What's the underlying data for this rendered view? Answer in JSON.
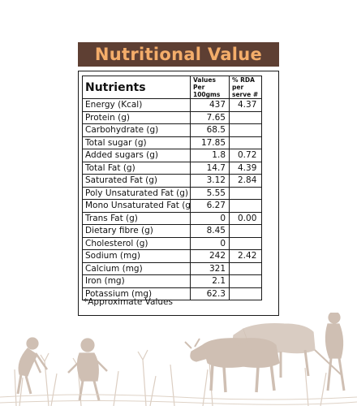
{
  "title": "Nutritional Value",
  "headers": {
    "nutrients": "Nutrients",
    "values": "Values Per 100gms",
    "rda": "% RDA per serve #"
  },
  "rows": [
    {
      "name": "Energy (Kcal)",
      "value": "437",
      "rda": "4.37"
    },
    {
      "name": "Protein (g)",
      "value": "7.65",
      "rda": ""
    },
    {
      "name": "Carbohydrate (g)",
      "value": "68.5",
      "rda": ""
    },
    {
      "name": "Total sugar (g)",
      "value": "17.85",
      "rda": ""
    },
    {
      "name": "Added sugars (g)",
      "value": "1.8",
      "rda": "0.72"
    },
    {
      "name": "Total Fat (g)",
      "value": "14.7",
      "rda": "4.39"
    },
    {
      "name": "Saturated Fat (g)",
      "value": "3.12",
      "rda": "2.84"
    },
    {
      "name": "Poly Unsaturated Fat (g)",
      "value": "5.55",
      "rda": ""
    },
    {
      "name": "Mono Unsaturated Fat (g)",
      "value": "6.27",
      "rda": ""
    },
    {
      "name": "Trans Fat  (g)",
      "value": "0",
      "rda": "0.00"
    },
    {
      "name": "Dietary fibre (g)",
      "value": "8.45",
      "rda": ""
    },
    {
      "name": "Cholesterol (g)",
      "value": "0",
      "rda": ""
    },
    {
      "name": "Sodium (mg)",
      "value": "242",
      "rda": "2.42"
    },
    {
      "name": "Calcium (mg)",
      "value": "321",
      "rda": ""
    },
    {
      "name": "Iron (mg)",
      "value": "2.1",
      "rda": ""
    },
    {
      "name": "Potassium (mg)",
      "value": "62.3",
      "rda": ""
    }
  ],
  "footnote": "*Approximate Values",
  "colors": {
    "banner_bg": "#5e3f33",
    "banner_text": "#f4ad6a",
    "illustration": "#c7b5a6"
  },
  "illustration": "farmers-working-field-with-oxen-illustration"
}
